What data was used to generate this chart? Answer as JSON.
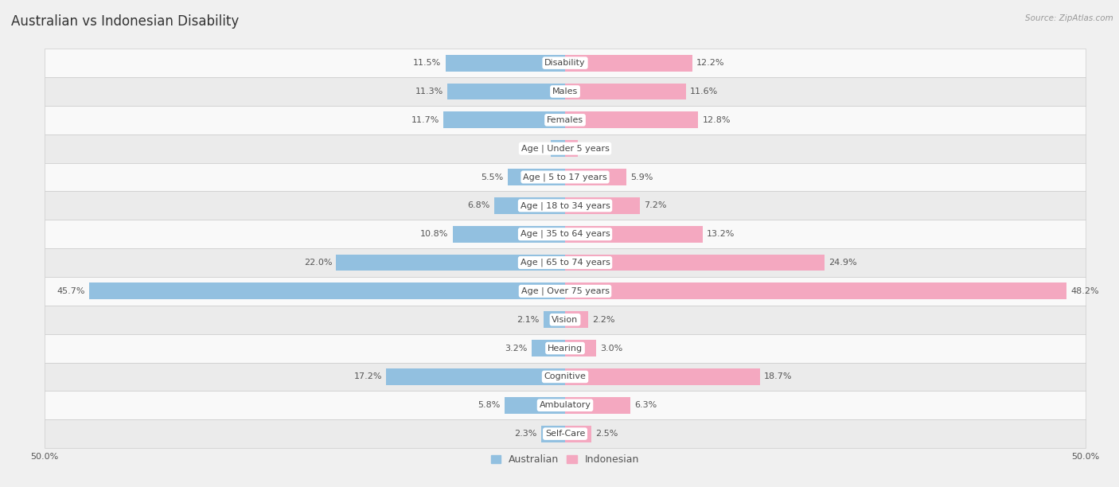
{
  "title": "Australian vs Indonesian Disability",
  "source": "Source: ZipAtlas.com",
  "categories": [
    "Disability",
    "Males",
    "Females",
    "Age | Under 5 years",
    "Age | 5 to 17 years",
    "Age | 18 to 34 years",
    "Age | 35 to 64 years",
    "Age | 65 to 74 years",
    "Age | Over 75 years",
    "Vision",
    "Hearing",
    "Cognitive",
    "Ambulatory",
    "Self-Care"
  ],
  "australian_values": [
    11.5,
    11.3,
    11.7,
    1.4,
    5.5,
    6.8,
    10.8,
    22.0,
    45.7,
    2.1,
    3.2,
    17.2,
    5.8,
    2.3
  ],
  "indonesian_values": [
    12.2,
    11.6,
    12.8,
    1.2,
    5.9,
    7.2,
    13.2,
    24.9,
    48.2,
    2.2,
    3.0,
    18.7,
    6.3,
    2.5
  ],
  "australian_color": "#92C0E0",
  "indonesian_color": "#F4A8C0",
  "axis_max": 50.0,
  "background_color": "#f0f0f0",
  "row_bg_light": "#f9f9f9",
  "row_bg_dark": "#ebebeb",
  "bar_height": 0.58,
  "title_fontsize": 12,
  "label_fontsize": 8,
  "value_fontsize": 8,
  "legend_fontsize": 9
}
